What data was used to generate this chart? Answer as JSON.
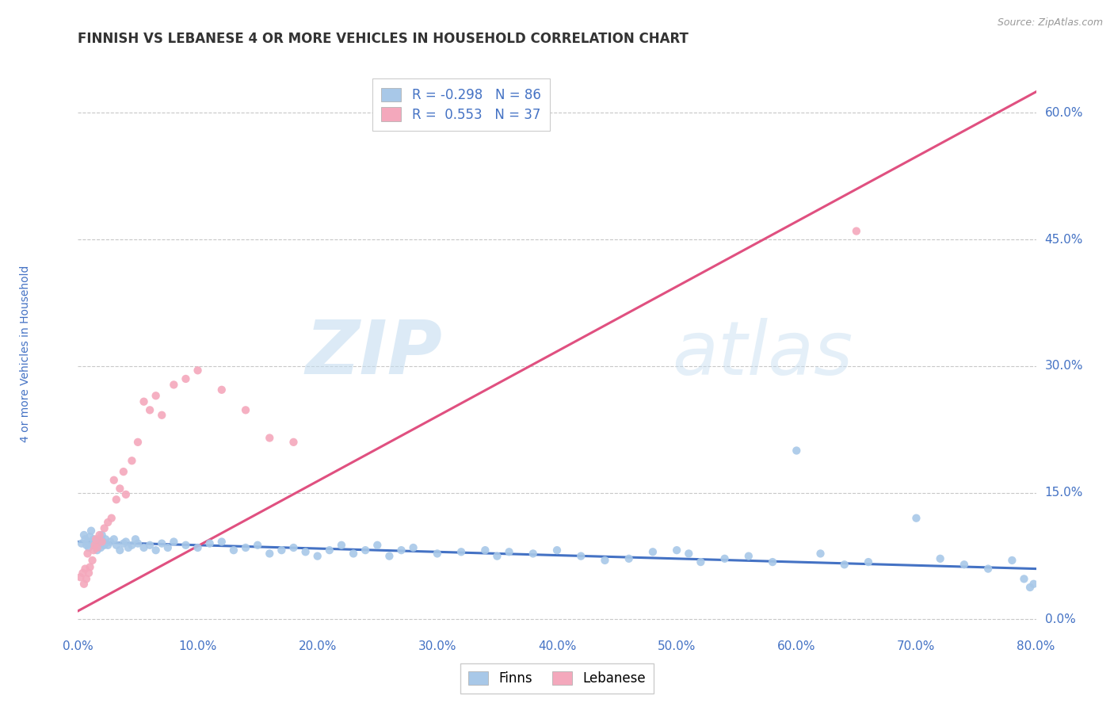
{
  "title": "FINNISH VS LEBANESE 4 OR MORE VEHICLES IN HOUSEHOLD CORRELATION CHART",
  "source": "Source: ZipAtlas.com",
  "ylabel": "4 or more Vehicles in Household",
  "watermark_zip": "ZIP",
  "watermark_atlas": "atlas",
  "xlim": [
    0.0,
    0.8
  ],
  "ylim": [
    -0.02,
    0.65
  ],
  "yticks": [
    0.0,
    0.15,
    0.3,
    0.45,
    0.6
  ],
  "xticks": [
    0.0,
    0.1,
    0.2,
    0.3,
    0.4,
    0.5,
    0.6,
    0.7,
    0.8
  ],
  "grid_color": "#c8c8c8",
  "background_color": "#ffffff",
  "finns_color": "#a8c8e8",
  "lebanese_color": "#f4a8bc",
  "finns_line_color": "#4472c4",
  "lebanese_line_color": "#e05080",
  "finns_R": -0.298,
  "finns_N": 86,
  "lebanese_R": 0.553,
  "lebanese_N": 37,
  "title_color": "#333333",
  "tick_label_color": "#4472c4",
  "legend_R_color": "#4472c4",
  "finns_scatter_x": [
    0.003,
    0.005,
    0.006,
    0.007,
    0.008,
    0.009,
    0.01,
    0.011,
    0.012,
    0.013,
    0.014,
    0.015,
    0.016,
    0.017,
    0.018,
    0.019,
    0.02,
    0.021,
    0.022,
    0.023,
    0.025,
    0.027,
    0.03,
    0.032,
    0.035,
    0.038,
    0.04,
    0.042,
    0.045,
    0.048,
    0.05,
    0.055,
    0.06,
    0.065,
    0.07,
    0.075,
    0.08,
    0.09,
    0.1,
    0.11,
    0.12,
    0.13,
    0.14,
    0.15,
    0.16,
    0.17,
    0.18,
    0.19,
    0.2,
    0.21,
    0.22,
    0.23,
    0.24,
    0.25,
    0.26,
    0.27,
    0.28,
    0.3,
    0.32,
    0.34,
    0.35,
    0.36,
    0.38,
    0.4,
    0.42,
    0.44,
    0.46,
    0.48,
    0.5,
    0.51,
    0.52,
    0.54,
    0.56,
    0.58,
    0.6,
    0.62,
    0.64,
    0.66,
    0.7,
    0.72,
    0.74,
    0.76,
    0.78,
    0.79,
    0.795,
    0.798
  ],
  "finns_scatter_y": [
    0.09,
    0.1,
    0.095,
    0.088,
    0.092,
    0.085,
    0.098,
    0.105,
    0.088,
    0.095,
    0.092,
    0.088,
    0.082,
    0.095,
    0.09,
    0.085,
    0.1,
    0.092,
    0.088,
    0.095,
    0.088,
    0.092,
    0.095,
    0.088,
    0.082,
    0.09,
    0.092,
    0.085,
    0.088,
    0.095,
    0.09,
    0.085,
    0.088,
    0.082,
    0.09,
    0.085,
    0.092,
    0.088,
    0.085,
    0.09,
    0.092,
    0.082,
    0.085,
    0.088,
    0.078,
    0.082,
    0.085,
    0.08,
    0.075,
    0.082,
    0.088,
    0.078,
    0.082,
    0.088,
    0.075,
    0.082,
    0.085,
    0.078,
    0.08,
    0.082,
    0.075,
    0.08,
    0.078,
    0.082,
    0.075,
    0.07,
    0.072,
    0.08,
    0.082,
    0.078,
    0.068,
    0.072,
    0.075,
    0.068,
    0.2,
    0.078,
    0.065,
    0.068,
    0.12,
    0.072,
    0.065,
    0.06,
    0.07,
    0.048,
    0.038,
    0.042
  ],
  "lebanese_scatter_x": [
    0.002,
    0.004,
    0.005,
    0.006,
    0.007,
    0.008,
    0.009,
    0.01,
    0.012,
    0.013,
    0.014,
    0.015,
    0.016,
    0.018,
    0.02,
    0.022,
    0.025,
    0.028,
    0.03,
    0.032,
    0.035,
    0.038,
    0.04,
    0.045,
    0.05,
    0.055,
    0.06,
    0.065,
    0.07,
    0.08,
    0.09,
    0.1,
    0.12,
    0.14,
    0.16,
    0.18,
    0.65
  ],
  "lebanese_scatter_y": [
    0.05,
    0.055,
    0.042,
    0.06,
    0.048,
    0.078,
    0.055,
    0.062,
    0.07,
    0.082,
    0.088,
    0.095,
    0.085,
    0.1,
    0.092,
    0.108,
    0.115,
    0.12,
    0.165,
    0.142,
    0.155,
    0.175,
    0.148,
    0.188,
    0.21,
    0.258,
    0.248,
    0.265,
    0.242,
    0.278,
    0.285,
    0.295,
    0.272,
    0.248,
    0.215,
    0.21,
    0.46
  ],
  "finns_trend_x": [
    0.0,
    0.8
  ],
  "finns_trend_y": [
    0.092,
    0.06
  ],
  "lebanese_trend_x": [
    0.0,
    0.8
  ],
  "lebanese_trend_y": [
    0.01,
    0.625
  ]
}
